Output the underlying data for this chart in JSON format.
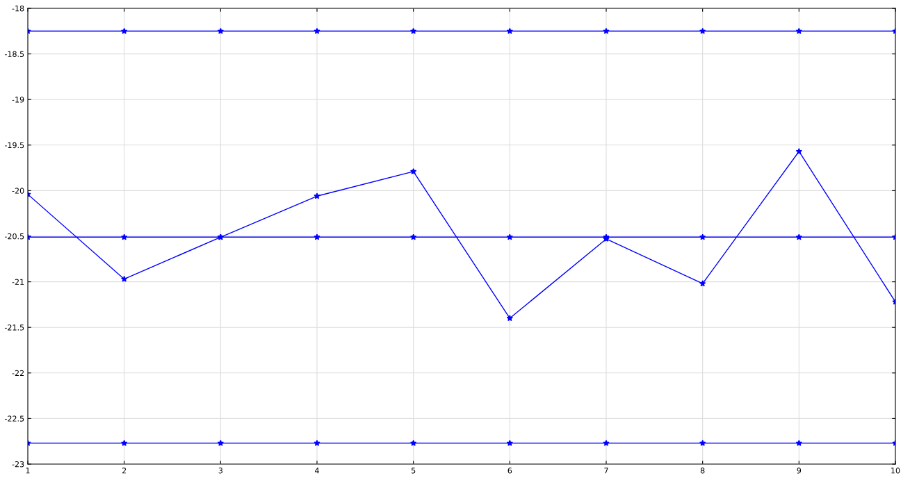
{
  "chart_data": {
    "type": "line",
    "x": [
      1,
      2,
      3,
      4,
      5,
      6,
      7,
      8,
      9,
      10
    ],
    "series": [
      {
        "color": "#0000ff",
        "values": [
          -18.25,
          -18.25,
          -18.25,
          -18.25,
          -18.25,
          -18.25,
          -18.25,
          -18.25,
          -18.25,
          -18.25
        ]
      },
      {
        "color": "#0000ff",
        "values": [
          -20.51,
          -20.51,
          -20.51,
          -20.51,
          -20.51,
          -20.51,
          -20.51,
          -20.51,
          -20.51,
          -20.51
        ]
      },
      {
        "color": "#0000ff",
        "values": [
          -22.77,
          -22.77,
          -22.77,
          -22.77,
          -22.77,
          -22.77,
          -22.77,
          -22.77,
          -22.77,
          -22.77
        ]
      },
      {
        "color": "#0000ff",
        "values": [
          -20.04,
          -20.97,
          -20.51,
          -20.06,
          -19.79,
          -21.4,
          -20.53,
          -21.02,
          -19.57,
          -21.22
        ]
      }
    ],
    "xlim": [
      1,
      10
    ],
    "xticks": [
      1,
      2,
      3,
      4,
      5,
      6,
      7,
      8,
      9,
      10
    ],
    "ylim": [
      -23,
      -18
    ],
    "yticks": [
      -23,
      -22.5,
      -22,
      -21.5,
      -21,
      -20.5,
      -20,
      -19.5,
      -19,
      -18.5,
      -18
    ],
    "grid": true,
    "marker": "star",
    "line_style": "solid"
  }
}
